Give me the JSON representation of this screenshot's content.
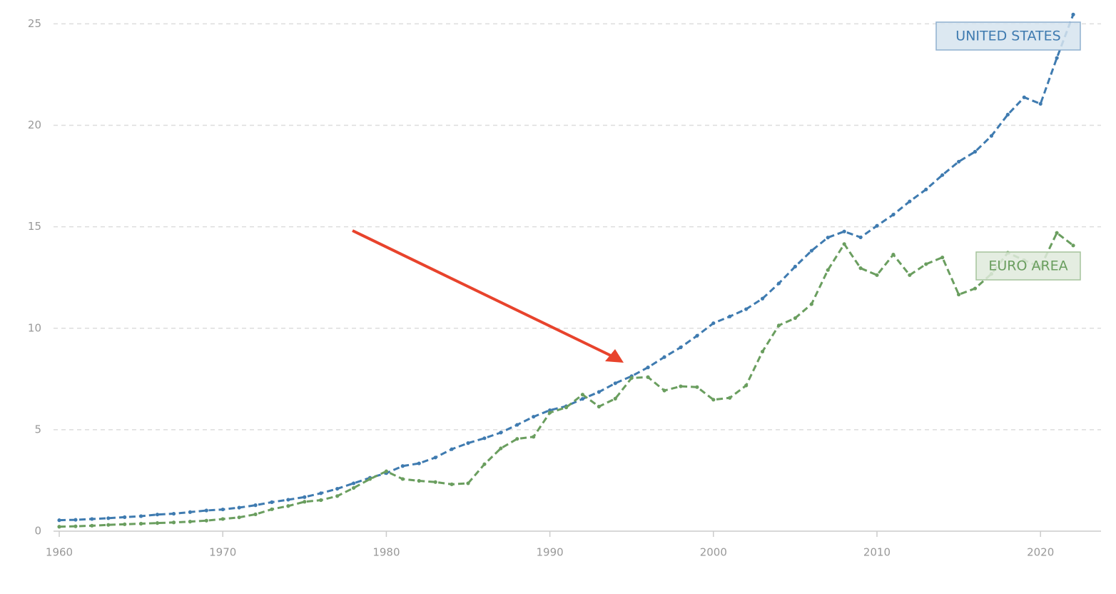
{
  "chart_data": {
    "type": "line",
    "x": [
      1960,
      1961,
      1962,
      1963,
      1964,
      1965,
      1966,
      1967,
      1968,
      1969,
      1970,
      1971,
      1972,
      1973,
      1974,
      1975,
      1976,
      1977,
      1978,
      1979,
      1980,
      1981,
      1982,
      1983,
      1984,
      1985,
      1986,
      1987,
      1988,
      1989,
      1990,
      1991,
      1992,
      1993,
      1994,
      1995,
      1996,
      1997,
      1998,
      1999,
      2000,
      2001,
      2002,
      2003,
      2004,
      2005,
      2006,
      2007,
      2008,
      2009,
      2010,
      2011,
      2012,
      2013,
      2014,
      2015,
      2016,
      2017,
      2018,
      2019,
      2020,
      2021,
      2022
    ],
    "series": [
      {
        "name": "UNITED STATES",
        "color": "#3f7bb0",
        "values": [
          0.54,
          0.56,
          0.6,
          0.64,
          0.69,
          0.74,
          0.82,
          0.86,
          0.94,
          1.02,
          1.07,
          1.16,
          1.28,
          1.43,
          1.55,
          1.68,
          1.87,
          2.09,
          2.36,
          2.63,
          2.86,
          3.21,
          3.34,
          3.63,
          4.04,
          4.34,
          4.58,
          4.86,
          5.24,
          5.64,
          5.96,
          6.16,
          6.52,
          6.86,
          7.29,
          7.64,
          8.07,
          8.58,
          9.06,
          9.63,
          10.25,
          10.58,
          10.94,
          11.46,
          12.21,
          13.04,
          13.82,
          14.47,
          14.77,
          14.48,
          15.05,
          15.6,
          16.25,
          16.84,
          17.55,
          18.21,
          18.7,
          19.48,
          20.53,
          21.38,
          21.06,
          23.32,
          25.46
        ]
      },
      {
        "name": "EURO AREA",
        "color": "#6a9e5f",
        "values": [
          0.22,
          0.24,
          0.27,
          0.31,
          0.34,
          0.37,
          0.4,
          0.43,
          0.47,
          0.52,
          0.6,
          0.68,
          0.83,
          1.08,
          1.24,
          1.45,
          1.53,
          1.73,
          2.13,
          2.57,
          2.95,
          2.57,
          2.48,
          2.42,
          2.31,
          2.36,
          3.3,
          4.08,
          4.55,
          4.65,
          5.84,
          6.1,
          6.73,
          6.14,
          6.53,
          7.55,
          7.59,
          6.93,
          7.14,
          7.1,
          6.48,
          6.57,
          7.18,
          8.85,
          10.14,
          10.5,
          11.19,
          12.87,
          14.15,
          12.96,
          12.62,
          13.63,
          12.62,
          13.16,
          13.49,
          11.66,
          11.96,
          12.68,
          13.72,
          13.35,
          13.01,
          14.7,
          14.08
        ]
      }
    ],
    "xlim": [
      1959.65,
      2023.7
    ],
    "xticks": [
      1960,
      1970,
      1980,
      1990,
      2000,
      2010,
      2020
    ],
    "ylim": [
      0,
      26
    ],
    "yticks": [
      0,
      5,
      10,
      15,
      20,
      25
    ],
    "grid": true
  }
}
